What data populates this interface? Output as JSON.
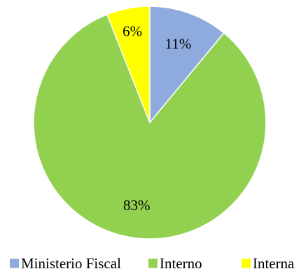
{
  "chart_data": {
    "type": "pie",
    "title": "",
    "categories": [
      "Ministerio Fiscal",
      "Interno",
      "Interna"
    ],
    "values": [
      11,
      83,
      6
    ],
    "value_labels": [
      "11%",
      "83%",
      "6%"
    ],
    "colors": [
      "#8FAADC",
      "#92D050",
      "#FFFF00"
    ],
    "legend_position": "bottom"
  }
}
